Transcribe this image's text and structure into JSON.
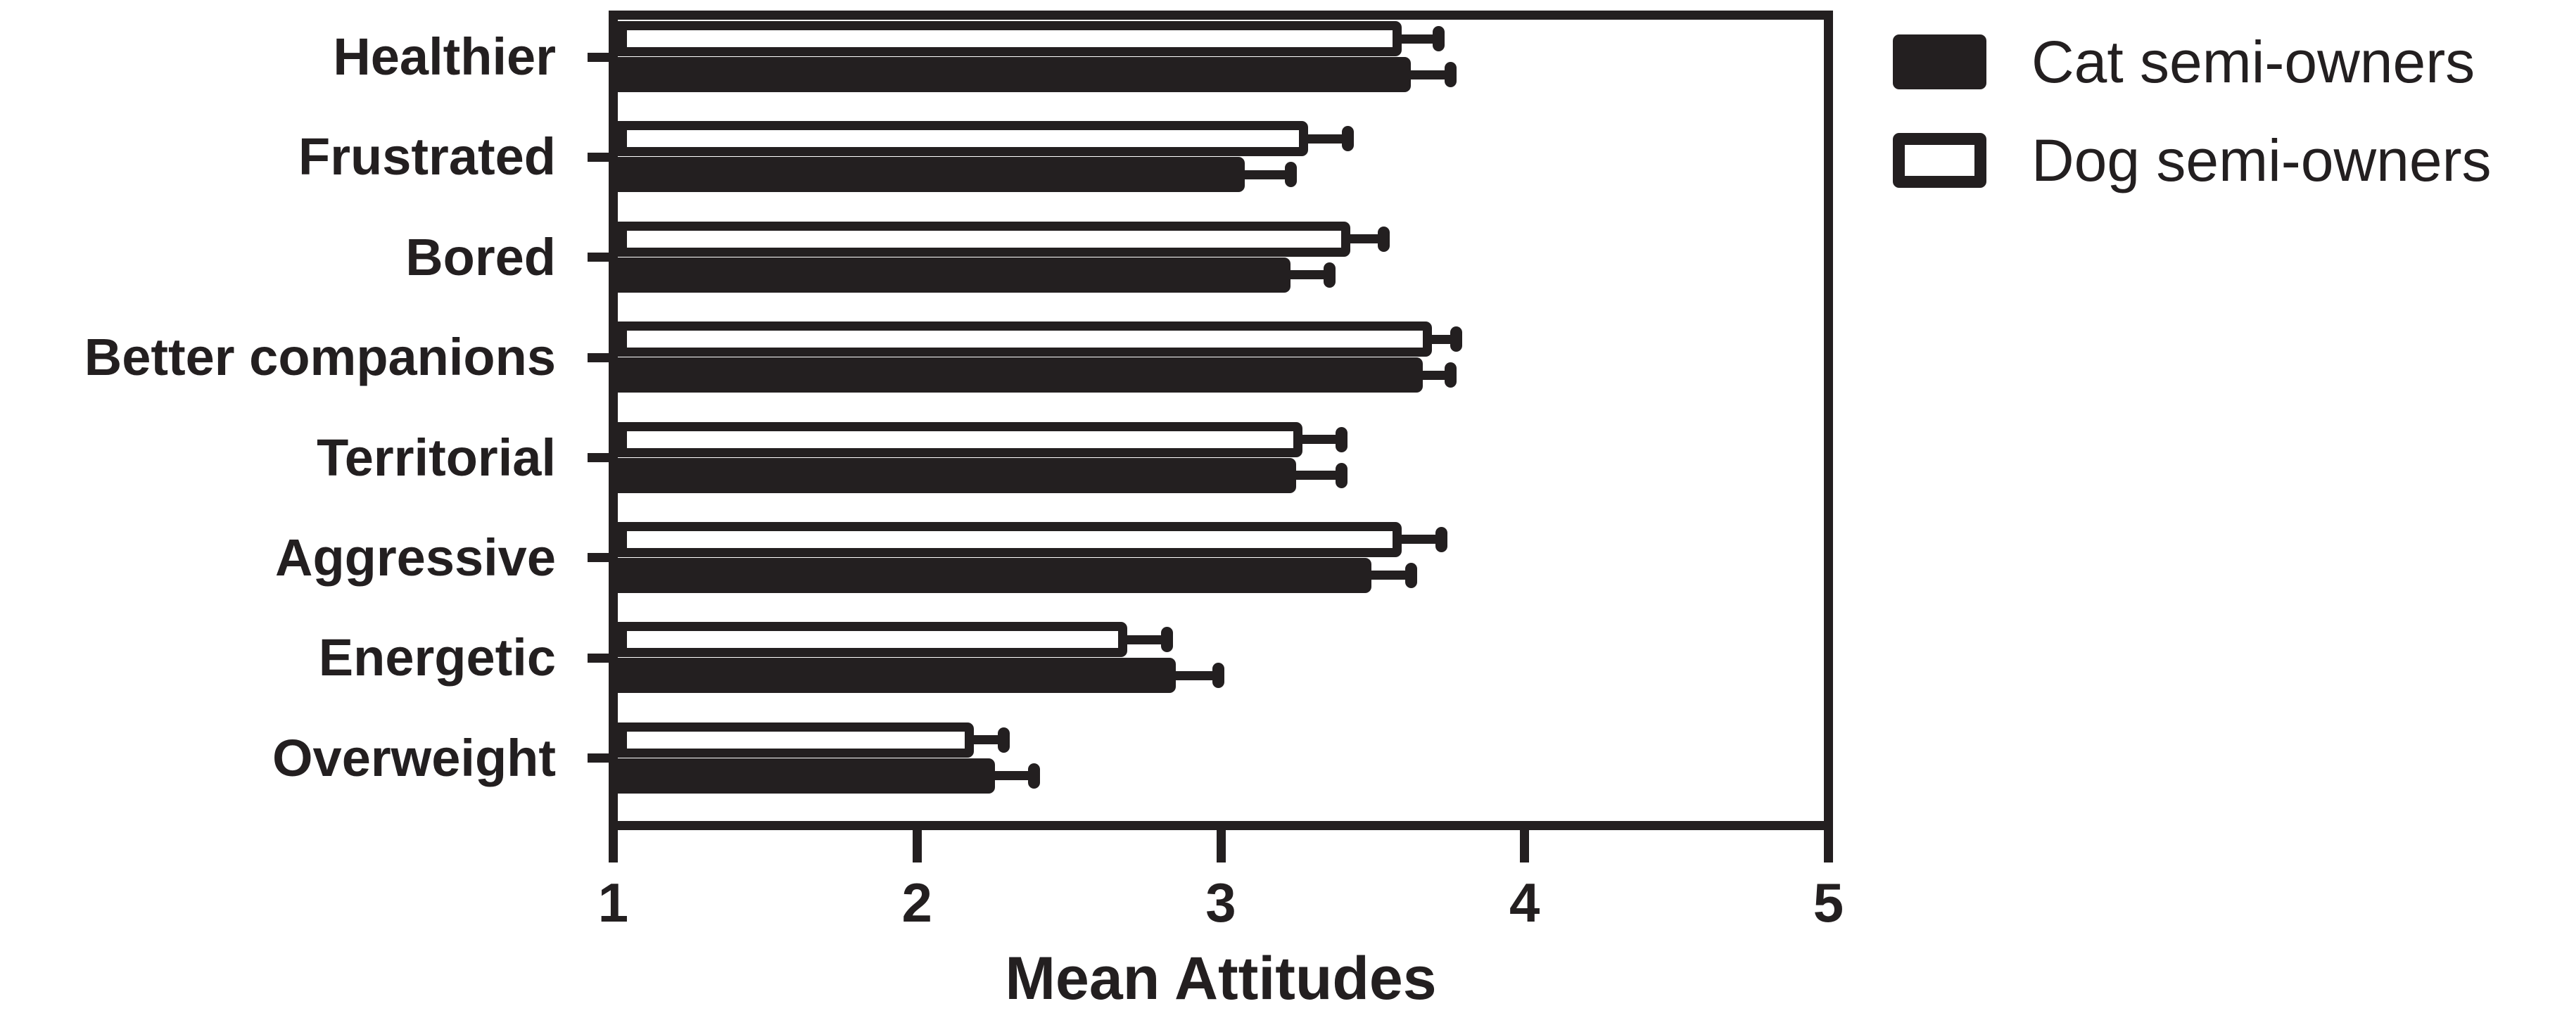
{
  "figure": {
    "colors": {
      "ink": "#231f20",
      "paper": "#ffffff"
    },
    "legend": [
      {
        "label": "Cat semi-owners",
        "swatch": "filled"
      },
      {
        "label": "Dog semi-owners",
        "swatch": "outlined"
      }
    ]
  },
  "chart_data": {
    "type": "bar",
    "orientation": "horizontal",
    "title": "",
    "xlabel": "Mean Attitudes",
    "ylabel": "",
    "xlim": [
      1,
      5
    ],
    "xticks": [
      1,
      2,
      3,
      4,
      5
    ],
    "grid": false,
    "error_bars": "upper-only",
    "legend_position": "top-right",
    "categories": [
      "Healthier",
      "Frustrated",
      "Bored",
      "Better companions",
      "Territorial",
      "Aggressive",
      "Energetic",
      "Overweight"
    ],
    "series": [
      {
        "name": "Cat semi-owners",
        "style": "solid-black",
        "values": [
          3.63,
          3.08,
          3.23,
          3.67,
          3.25,
          3.5,
          2.85,
          2.25
        ],
        "errors_upper": [
          0.13,
          0.15,
          0.13,
          0.09,
          0.15,
          0.13,
          0.14,
          0.13
        ]
      },
      {
        "name": "Dog semi-owners",
        "style": "white-outlined",
        "values": [
          3.6,
          3.29,
          3.43,
          3.7,
          3.27,
          3.6,
          2.69,
          2.18
        ],
        "errors_upper": [
          0.12,
          0.13,
          0.11,
          0.08,
          0.13,
          0.13,
          0.13,
          0.1
        ]
      }
    ]
  }
}
